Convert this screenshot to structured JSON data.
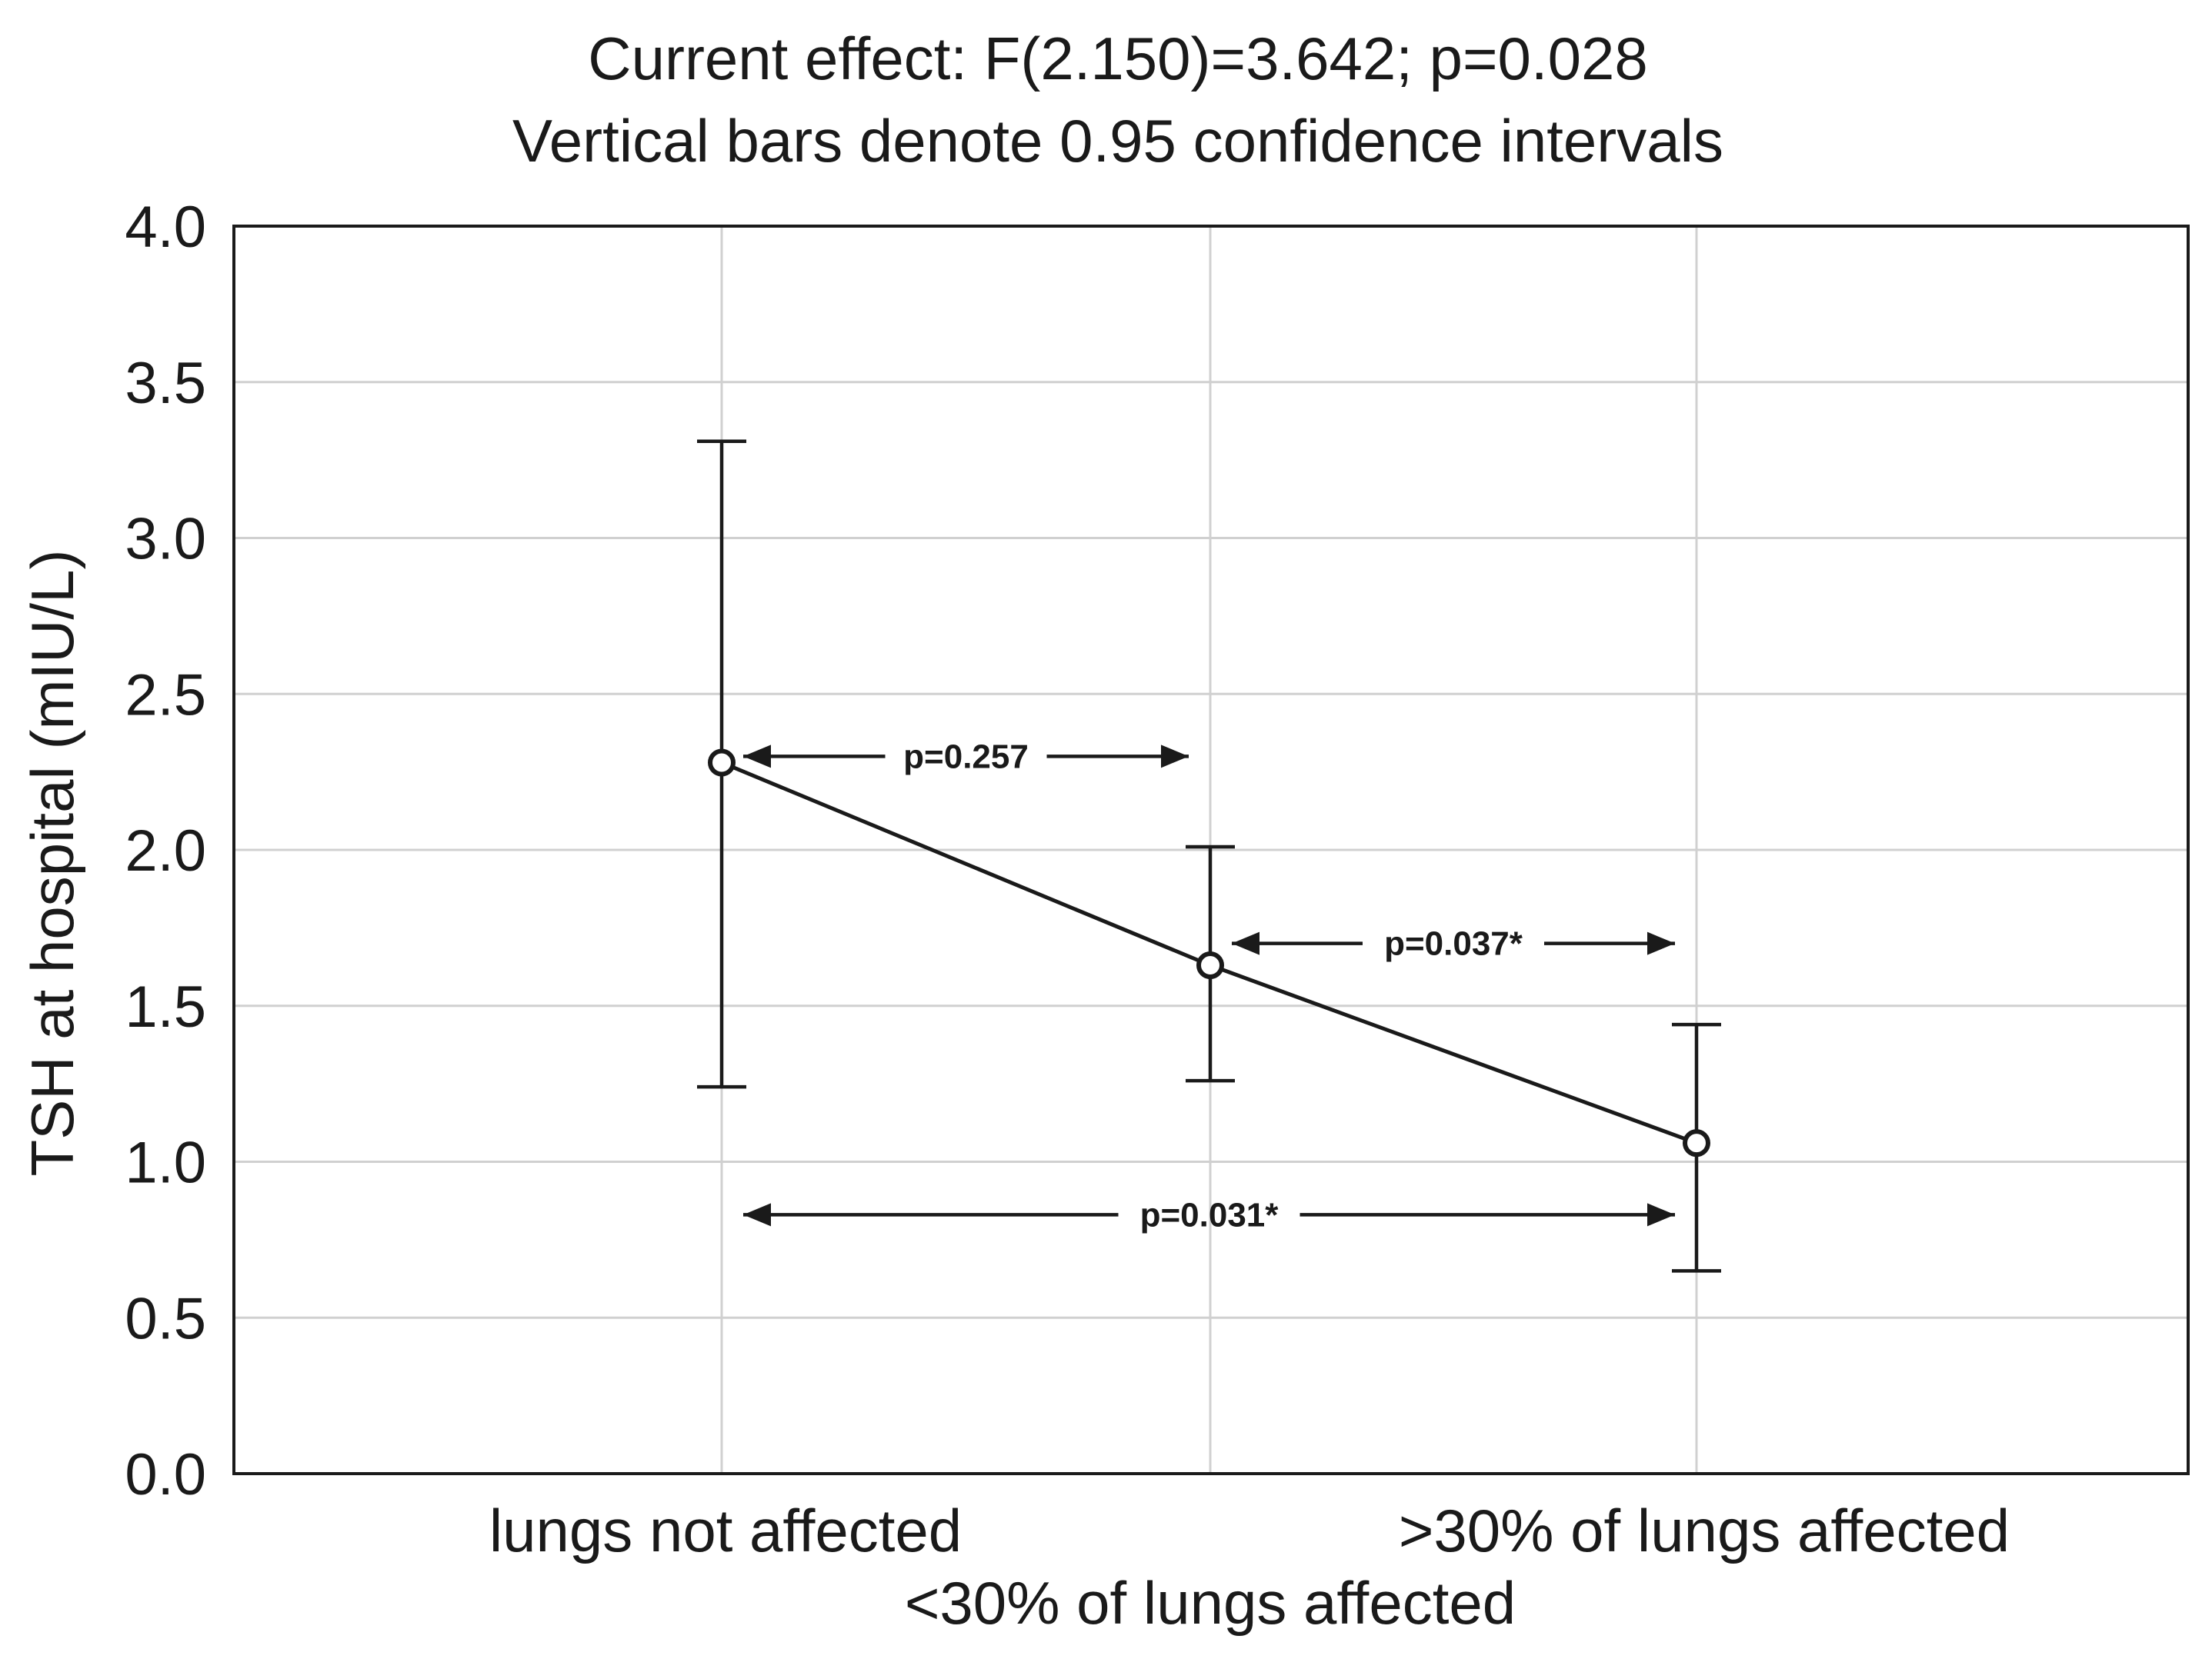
{
  "chart_data": {
    "type": "line",
    "title": "Current effect: F(2.150)=3.642; p=0.028",
    "subtitle": "Vertical bars denote 0.95 confidence intervals",
    "ylabel": "TSH at hospital (mIU/L)",
    "xlabel": "",
    "ylim": [
      0,
      4
    ],
    "yticks": [
      "0.0",
      "0.5",
      "1.0",
      "1.5",
      "2.0",
      "2.5",
      "3.0",
      "3.5",
      "4.0"
    ],
    "grid": true,
    "categories": [
      "lungs not affected",
      "<30% of lungs affected",
      ">30% of lungs affected"
    ],
    "series": [
      {
        "name": "TSH",
        "values": [
          2.28,
          1.63,
          1.06
        ],
        "ci_lower": [
          1.24,
          1.26,
          0.65
        ],
        "ci_upper": [
          3.31,
          2.01,
          1.44
        ]
      }
    ],
    "annotations": [
      {
        "text": "p=0.257",
        "from_index": 0,
        "to_index": 1,
        "y": 2.3
      },
      {
        "text": "p=0.037*",
        "from_index": 1,
        "to_index": 2,
        "y": 1.7
      },
      {
        "text": "p=0.031*",
        "from_index": 0,
        "to_index": 2,
        "y": 0.83
      }
    ],
    "colors": {
      "line": "#1a1a1a",
      "grid": "#d0d0d0",
      "frame": "#1a1a1a"
    }
  }
}
